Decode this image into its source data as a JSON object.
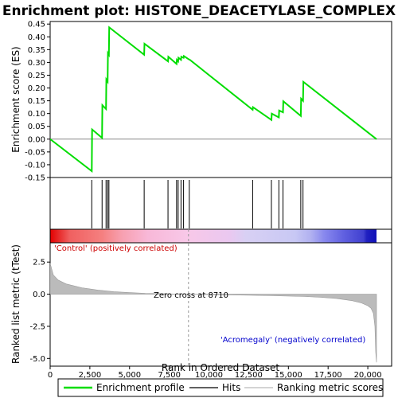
{
  "chart_data": {
    "type": "line",
    "title": "Enrichment plot: HISTONE_DEACETYLASE_COMPLEX",
    "top_panel": {
      "ylabel": "Enrichment score (ES)",
      "ylim": [
        -0.15,
        0.46
      ],
      "yticks": [
        -0.15,
        -0.1,
        -0.05,
        0.0,
        0.05,
        0.1,
        0.15,
        0.2,
        0.25,
        0.3,
        0.35,
        0.4,
        0.45
      ],
      "ytick_labels": [
        "-0.15",
        "-0.10",
        "-0.05",
        "0.00",
        "0.05",
        "0.10",
        "0.15",
        "0.20",
        "0.25",
        "0.30",
        "0.35",
        "0.40",
        "0.45"
      ],
      "series": [
        {
          "name": "Enrichment profile",
          "color": "#00dd00",
          "x": [
            0,
            2620,
            2640,
            3270,
            3290,
            3520,
            3540,
            3620,
            3640,
            3700,
            3720,
            5920,
            5940,
            7420,
            7440,
            7960,
            7980,
            8060,
            8080,
            8240,
            8260,
            8400,
            8420,
            8760,
            8780,
            12750,
            12770,
            13930,
            13950,
            14400,
            14420,
            14660,
            14680,
            15780,
            15800,
            15920,
            15940,
            20550
          ],
          "y": [
            0.0,
            -0.125,
            0.038,
            0.005,
            0.133,
            0.118,
            0.233,
            0.225,
            0.336,
            0.33,
            0.437,
            0.33,
            0.373,
            0.304,
            0.322,
            0.294,
            0.31,
            0.304,
            0.318,
            0.31,
            0.322,
            0.318,
            0.325,
            0.311,
            0.311,
            0.115,
            0.125,
            0.075,
            0.1,
            0.085,
            0.112,
            0.105,
            0.148,
            0.091,
            0.158,
            0.15,
            0.224,
            0.0
          ]
        }
      ]
    },
    "hits": [
      2620,
      3270,
      3520,
      3620,
      3700,
      5920,
      7420,
      7960,
      8060,
      8240,
      8400,
      8760,
      12750,
      13930,
      14400,
      14660,
      15780,
      15920
    ],
    "heat_bar": {
      "label_positive": "'Control' (positively correlated)",
      "label_negative": "'Acromegaly' (negatively correlated)"
    },
    "bottom_panel": {
      "ylabel": "Ranked list metric (tTest)",
      "xlabel": "Rank in Ordered Dataset",
      "xlim": [
        0,
        21500
      ],
      "xticks": [
        0,
        2500,
        5000,
        7500,
        10000,
        12500,
        15000,
        17500,
        20000
      ],
      "xtick_labels": [
        "0",
        "2,500",
        "5,000",
        "7,500",
        "10,000",
        "12,500",
        "15,000",
        "17,500",
        "20,000"
      ],
      "ylim": [
        -5.6,
        4.0
      ],
      "yticks": [
        -5.0,
        -2.5,
        0.0,
        2.5
      ],
      "ytick_labels": [
        "-5.0",
        "-2.5",
        "0.0",
        "2.5"
      ],
      "zero_cross_label": "Zero cross at 8710",
      "zero_cross": 8710,
      "metric_x": [
        0,
        200,
        500,
        1000,
        2000,
        3000,
        4000,
        5000,
        6000,
        7000,
        8000,
        8710,
        10000,
        12000,
        14000,
        16000,
        17000,
        18000,
        19000,
        19600,
        20000,
        20200,
        20350,
        20450,
        20500,
        20550
      ],
      "metric_y": [
        2.4,
        1.5,
        1.1,
        0.8,
        0.5,
        0.32,
        0.2,
        0.12,
        0.07,
        0.04,
        0.01,
        0.0,
        -0.03,
        -0.07,
        -0.12,
        -0.18,
        -0.24,
        -0.33,
        -0.5,
        -0.68,
        -0.9,
        -1.1,
        -1.5,
        -2.5,
        -4.5,
        -5.3
      ]
    },
    "legend": {
      "items": [
        {
          "label": "Enrichment profile",
          "color": "#00dd00"
        },
        {
          "label": "Hits",
          "color": "#000000"
        },
        {
          "label": "Ranking metric scores",
          "color": "#bbbbbb"
        }
      ]
    }
  }
}
